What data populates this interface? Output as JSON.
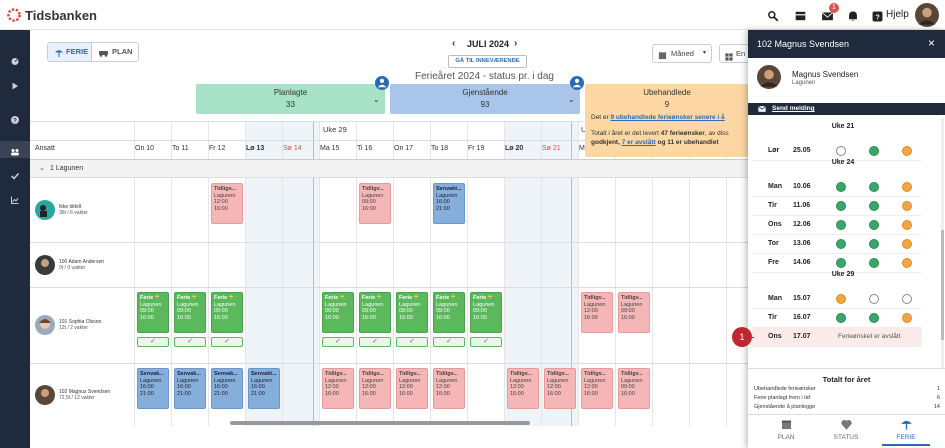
{
  "header": {
    "brand": "Tidsbanken",
    "help": "Hjelp",
    "mail_badge": "1"
  },
  "toolbar": {
    "tabs": [
      "FERIE",
      "PLAN"
    ],
    "month": "JULI 2024",
    "today_button": "GÅ TIL INNEVÆRENDE",
    "status_title": "Ferieåret 2024 - status pr. i dag",
    "view_select": "Måned",
    "view_select2": "En"
  },
  "summary": [
    {
      "label": "Planlagte",
      "value": "33"
    },
    {
      "label": "Gjenstående",
      "value": "93"
    },
    {
      "label": "Ubehandlede",
      "value": "9"
    }
  ],
  "summary_note": {
    "line1": [
      "Det er ",
      "9 ubehandlede ferieønsker senere i å"
    ],
    "line2": [
      "Totalt i året er det levert ",
      "47 ferieønsker",
      ", av diss"
    ],
    "line3": [
      "godkjent, ",
      "7 er avslått",
      " og 11 er ubehandlet"
    ]
  },
  "schedule": {
    "weeks": [
      "Uke 29",
      "U"
    ],
    "employee_header": "Ansatt",
    "group": "1 Lagunen",
    "days": [
      "On 10",
      "To 11",
      "Fr 12",
      "Lø 13",
      "Sø 14",
      "Ma 15",
      "Ti 16",
      "On 17",
      "To 18",
      "Fr 19",
      "Lø 20",
      "Sø 21",
      "M"
    ],
    "saturdays": [
      3,
      10
    ],
    "sundays": [
      4,
      11
    ],
    "employees": [
      {
        "name": "Ikke tildelt",
        "hours": "36t / 6 vakter",
        "shifts": [
          {
            "day": 2,
            "kind": "early",
            "title": "Tidligv...",
            "dept": "Lagunen",
            "start": "12:00",
            "end": "16:00"
          },
          {
            "day": 6,
            "kind": "early",
            "title": "Tidligv...",
            "dept": "Lagunen",
            "start": "09:00",
            "end": "16:00"
          },
          {
            "day": 8,
            "kind": "late",
            "title": "Senvakt...",
            "dept": "Lagunen",
            "start": "16:00",
            "end": "21:00"
          }
        ]
      },
      {
        "name": "100 Adam Andersen",
        "hours": "0t / 0 vakter",
        "shifts": []
      },
      {
        "name": "101 Sophia Olsson",
        "hours": "12t / 2 vakter",
        "shifts": [
          {
            "day": 0,
            "kind": "vacation",
            "title": "Ferie",
            "dept": "Lagunen",
            "start": "09:00",
            "end": "16:00"
          },
          {
            "day": 1,
            "kind": "vacation",
            "title": "Ferie",
            "dept": "Lagunen",
            "start": "09:00",
            "end": "16:00"
          },
          {
            "day": 2,
            "kind": "vacation",
            "title": "Ferie",
            "dept": "Lagunen",
            "start": "09:00",
            "end": "16:00"
          },
          {
            "day": 5,
            "kind": "vacation",
            "title": "Ferie",
            "dept": "Lagunen",
            "start": "09:00",
            "end": "16:00"
          },
          {
            "day": 6,
            "kind": "vacation",
            "title": "Ferie",
            "dept": "Lagunen",
            "start": "09:00",
            "end": "16:00"
          },
          {
            "day": 7,
            "kind": "vacation",
            "title": "Ferie",
            "dept": "Lagunen",
            "start": "09:00",
            "end": "16:00"
          },
          {
            "day": 8,
            "kind": "vacation",
            "title": "Ferie",
            "dept": "Lagunen",
            "start": "09:00",
            "end": "16:00"
          },
          {
            "day": 9,
            "kind": "vacation",
            "title": "Ferie",
            "dept": "Lagunen",
            "start": "09:00",
            "end": "16:00"
          },
          {
            "day": 12,
            "kind": "early",
            "title": "Tidligv...",
            "dept": "Lagunen",
            "start": "12:00",
            "end": "16:00"
          },
          {
            "day": 13,
            "kind": "early",
            "title": "Tidligv...",
            "dept": "Lagunen",
            "start": "09:00",
            "end": "16:00"
          }
        ]
      },
      {
        "name": "102 Magnus Svendsen",
        "hours": "72,5t / 12 vakter",
        "shifts": [
          {
            "day": 0,
            "kind": "late",
            "title": "Senvak...",
            "dept": "Lagunen",
            "start": "16:00",
            "end": "21:00"
          },
          {
            "day": 1,
            "kind": "late",
            "title": "Senvak...",
            "dept": "Lagunen",
            "start": "16:00",
            "end": "21:00"
          },
          {
            "day": 2,
            "kind": "late",
            "title": "Senvak...",
            "dept": "Lagunen",
            "start": "16:00",
            "end": "21:00"
          },
          {
            "day": 3,
            "kind": "late",
            "title": "Senvakt...",
            "dept": "Lagunen",
            "start": "16:00",
            "end": "21:00"
          },
          {
            "day": 5,
            "kind": "early",
            "title": "Tidligv...",
            "dept": "Lagunen",
            "start": "12:00",
            "end": "16:00"
          },
          {
            "day": 6,
            "kind": "early",
            "title": "Tidligv...",
            "dept": "Lagunen",
            "start": "12:00",
            "end": "16:00"
          },
          {
            "day": 7,
            "kind": "early",
            "title": "Tidligv...",
            "dept": "Lagunen",
            "start": "12:00",
            "end": "16:00"
          },
          {
            "day": 8,
            "kind": "early",
            "title": "Tidligv...",
            "dept": "Lagunen",
            "start": "12:00",
            "end": "16:00"
          },
          {
            "day": 10,
            "kind": "early",
            "title": "Tidligv...",
            "dept": "Lagunen",
            "start": "12:00",
            "end": "16:00"
          },
          {
            "day": 11,
            "kind": "early",
            "title": "Tidligv...",
            "dept": "Lagunen",
            "start": "12:00",
            "end": "16:00"
          },
          {
            "day": 12,
            "kind": "early",
            "title": "Tidligv...",
            "dept": "Lagunen",
            "start": "12:00",
            "end": "16:00"
          },
          {
            "day": 13,
            "kind": "early",
            "title": "Tidligv...",
            "dept": "Lagunen",
            "start": "09:00",
            "end": "16:00"
          }
        ]
      }
    ]
  },
  "panel": {
    "title": "102 Magnus Svendsen",
    "name": "Magnus Svendsen",
    "dept": "Lagunen",
    "send": "Send melding",
    "weeks": [
      {
        "label": "Uke 21",
        "rows": [
          {
            "day": "Lør",
            "date": "25.05",
            "dots": [
              "none",
              "approved",
              "pending"
            ]
          }
        ]
      },
      {
        "label": "Uke 24",
        "rows": [
          {
            "day": "Man",
            "date": "10.06",
            "dots": [
              "approved",
              "approved",
              "pending"
            ]
          },
          {
            "day": "Tir",
            "date": "11.06",
            "dots": [
              "approved",
              "approved",
              "pending"
            ]
          },
          {
            "day": "Ons",
            "date": "12.06",
            "dots": [
              "approved",
              "approved",
              "pending"
            ]
          },
          {
            "day": "Tor",
            "date": "13.06",
            "dots": [
              "approved",
              "approved",
              "pending"
            ]
          },
          {
            "day": "Fre",
            "date": "14.06",
            "dots": [
              "approved",
              "approved",
              "pending"
            ]
          }
        ]
      },
      {
        "label": "Uke 29",
        "rows": [
          {
            "day": "Man",
            "date": "15.07",
            "dots": [
              "pending",
              "none",
              "none"
            ]
          },
          {
            "day": "Tir",
            "date": "16.07",
            "dots": [
              "approved",
              "approved",
              "pending"
            ]
          },
          {
            "day": "Ons",
            "date": "17.07",
            "note": "Ferieønsket er avslått"
          }
        ]
      }
    ],
    "annotation": "1",
    "totals_title": "Totalt for året",
    "totals": [
      {
        "label": "Ubehandlede ferieønsker",
        "value": "1"
      },
      {
        "label": "Ferie planlagt frem i tid",
        "value": "6"
      },
      {
        "label": "Gjenstående å planlegge",
        "value": "14"
      }
    ],
    "tabs": [
      "PLAN",
      "STATUS",
      "FERIE"
    ]
  }
}
